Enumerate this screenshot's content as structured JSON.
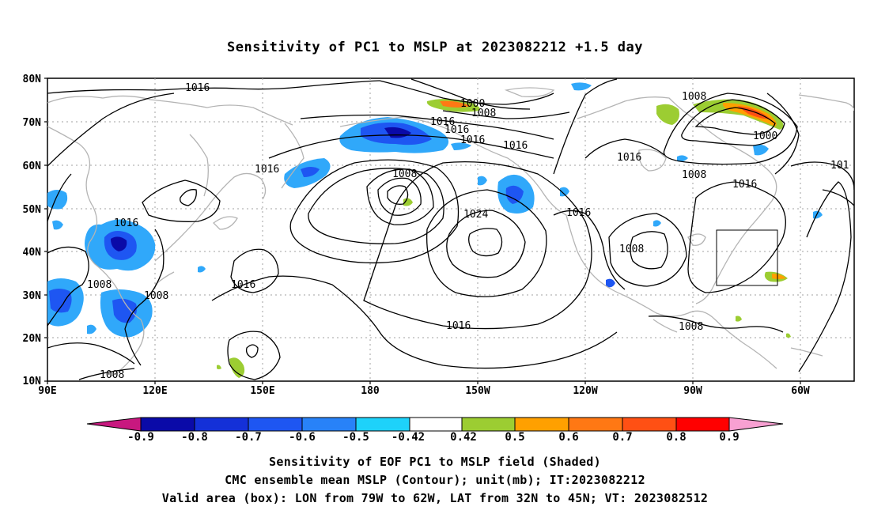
{
  "title": "Sensitivity of PC1 to MSLP at 2023082212 +1.5 day",
  "axes": {
    "lat_labels": [
      "80N",
      "70N",
      "60N",
      "50N",
      "40N",
      "30N",
      "20N",
      "10N"
    ],
    "lon_labels": [
      "90E",
      "120E",
      "150E",
      "180",
      "150W",
      "120W",
      "90W",
      "60W"
    ]
  },
  "contour_labels": [
    "1016",
    "1000",
    "1008",
    "1016",
    "1016",
    "1016",
    "1016",
    "1008",
    "1016",
    "1000",
    "1008",
    "1016",
    "1016",
    "1008",
    "1024",
    "1016",
    "1008",
    "1016",
    "1016",
    "1008",
    "1008",
    "1016",
    "1008",
    "1008",
    "101"
  ],
  "colorbar": {
    "colors": [
      "#c8187f",
      "#0a0aa8",
      "#1430d8",
      "#1e56f2",
      "#2882f8",
      "#30a8fa",
      "#1ed2fa",
      "#ffffff",
      "#9ccd32",
      "#ffa000",
      "#ff7814",
      "#ff5014",
      "#ff0000",
      "#ff0040",
      "#f8a0d2"
    ],
    "tick_labels": [
      "-0.9",
      "-0.8",
      "-0.7",
      "-0.6",
      "-0.5",
      "-0.42",
      "0.42",
      "0.5",
      "0.6",
      "0.7",
      "0.8",
      "0.9"
    ]
  },
  "captions": [
    "Sensitivity of EOF PC1 to MSLP field (Shaded)",
    "CMC ensemble mean MSLP (Contour); unit(mb); IT:2023082212",
    "Valid area (box): LON from 79W to 62W, LAT from 32N to 45N; VT: 2023082512"
  ],
  "valid_box": {
    "lon_from": "79W",
    "lon_to": "62W",
    "lat_from": "32N",
    "lat_to": "45N"
  },
  "colors": {
    "contour": "#000000",
    "coast": "#b4b4b4",
    "grid": "#a0a0a0"
  }
}
